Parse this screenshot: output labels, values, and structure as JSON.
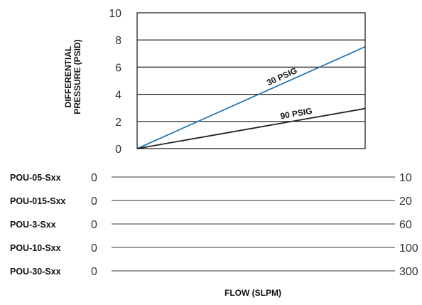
{
  "chart_data": {
    "type": "line",
    "title": "",
    "ylabel_lines": [
      "DIFFERENTIAL",
      "PRESSURE (PSID)"
    ],
    "xlabel": "FLOW (SLPM)",
    "ylim": [
      0,
      10
    ],
    "yticks": [
      "0",
      "2",
      "4",
      "6",
      "8",
      "10"
    ],
    "grid": true,
    "x_normalized_range": [
      0,
      1
    ],
    "series": [
      {
        "name": "30 PSIG",
        "color": "#2a7ab8",
        "x": [
          0,
          1
        ],
        "y": [
          0,
          7.5
        ]
      },
      {
        "name": "90 PSIG",
        "color": "#222222",
        "x": [
          0,
          1
        ],
        "y": [
          0,
          2.95
        ]
      }
    ],
    "flow_scales": [
      {
        "model": "POU-05-Sxx",
        "min": "0",
        "max": "10"
      },
      {
        "model": "POU-015-Sxx",
        "min": "0",
        "max": "20"
      },
      {
        "model": "POU-3-Sxx",
        "min": "0",
        "max": "60"
      },
      {
        "model": "POU-10-Sxx",
        "min": "0",
        "max": "100"
      },
      {
        "model": "POU-30-Sxx",
        "min": "0",
        "max": "300"
      }
    ]
  }
}
